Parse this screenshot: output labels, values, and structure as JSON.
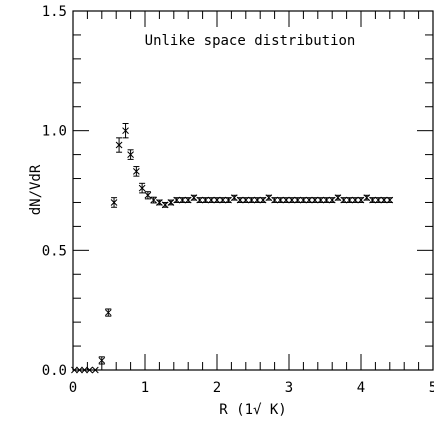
{
  "chart_data": {
    "type": "scatter",
    "title": "Unlike space distribution",
    "xlabel": "R (1√ K)",
    "ylabel": "dN/VdR",
    "xlim": [
      0,
      5
    ],
    "ylim": [
      0,
      1.5
    ],
    "x_ticks": [
      0,
      1,
      2,
      3,
      4,
      5
    ],
    "y_ticks": [
      0.0,
      0.5,
      1.0,
      1.5
    ],
    "x_tick_labels": [
      "0",
      "1",
      "2",
      "3",
      "4",
      "5"
    ],
    "y_tick_labels": [
      "0.0",
      "0.5",
      "1.0",
      "1.5"
    ],
    "grid": false,
    "legend": "none",
    "marker": "x-with-error-bar",
    "color": "#000000",
    "series": [
      {
        "x": [
          0.02,
          0.09,
          0.16,
          0.23,
          0.31,
          0.4,
          0.49,
          0.57,
          0.64,
          0.73,
          0.8,
          0.88,
          0.96,
          1.04,
          1.12,
          1.2,
          1.28,
          1.36,
          1.44,
          1.52,
          1.6,
          1.68,
          1.76,
          1.84,
          1.92,
          2.0,
          2.08,
          2.16,
          2.24,
          2.32,
          2.4,
          2.48,
          2.56,
          2.64,
          2.72,
          2.8,
          2.88,
          2.96,
          3.04,
          3.12,
          3.2,
          3.28,
          3.36,
          3.44,
          3.52,
          3.6,
          3.68,
          3.76,
          3.84,
          3.92,
          4.0,
          4.08,
          4.16,
          4.24,
          4.32,
          4.4
        ],
        "y": [
          0.0,
          0.0,
          0.0,
          0.0,
          0.0,
          0.04,
          0.24,
          0.7,
          0.94,
          1.0,
          0.9,
          0.83,
          0.76,
          0.73,
          0.71,
          0.7,
          0.69,
          0.7,
          0.71,
          0.71,
          0.71,
          0.72,
          0.71,
          0.71,
          0.71,
          0.71,
          0.71,
          0.71,
          0.72,
          0.71,
          0.71,
          0.71,
          0.71,
          0.71,
          0.72,
          0.71,
          0.71,
          0.71,
          0.71,
          0.71,
          0.71,
          0.71,
          0.71,
          0.71,
          0.71,
          0.71,
          0.72,
          0.71,
          0.71,
          0.71,
          0.71,
          0.72,
          0.71,
          0.71,
          0.71,
          0.71
        ],
        "err": [
          0.0,
          0.0,
          0.0,
          0.0,
          0.0,
          0.015,
          0.015,
          0.02,
          0.03,
          0.03,
          0.02,
          0.02,
          0.02,
          0.015,
          0.012,
          0.01,
          0.01,
          0.01,
          0.01,
          0.01,
          0.01,
          0.01,
          0.01,
          0.01,
          0.01,
          0.01,
          0.01,
          0.01,
          0.01,
          0.01,
          0.01,
          0.01,
          0.01,
          0.01,
          0.01,
          0.01,
          0.01,
          0.01,
          0.01,
          0.01,
          0.01,
          0.01,
          0.01,
          0.01,
          0.01,
          0.01,
          0.01,
          0.01,
          0.01,
          0.01,
          0.01,
          0.01,
          0.01,
          0.01,
          0.01,
          0.01
        ]
      }
    ]
  }
}
